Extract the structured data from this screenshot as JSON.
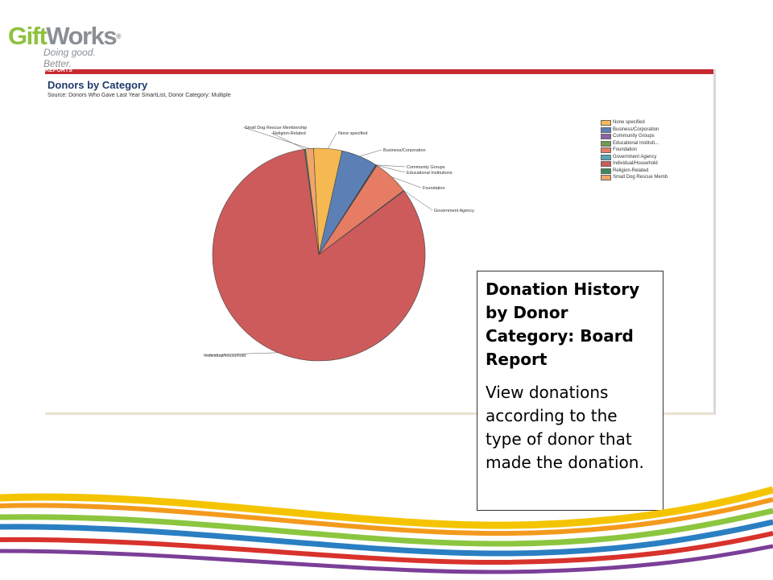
{
  "logo": {
    "brand_a": "Gift",
    "brand_b": "Works",
    "reg": "®",
    "tagline": "Doing good. Better."
  },
  "report": {
    "header_bar": "REPORTS",
    "title": "Donors by Category",
    "source": "Source: Donors Who Gave Last Year SmartList, Donor Category: Multiple"
  },
  "legend": [
    {
      "label": "None specified",
      "color": "#f6b951"
    },
    {
      "label": "Business/Corporation",
      "color": "#5c7fb5"
    },
    {
      "label": "Community Groups",
      "color": "#8a63a8"
    },
    {
      "label": "Educational Instituti...",
      "color": "#6f9a52"
    },
    {
      "label": "Foundation",
      "color": "#e67c64"
    },
    {
      "label": "Government Agency",
      "color": "#56a5b8"
    },
    {
      "label": "Individual/Household",
      "color": "#cd5b5b"
    },
    {
      "label": "Religion-Related",
      "color": "#3c8a58"
    },
    {
      "label": "Small Dog Rescue Memb",
      "color": "#f0a56b"
    }
  ],
  "chart_data": {
    "type": "pie",
    "title": "Donors by Category",
    "legend_position": "right",
    "slices": [
      {
        "label": "None specified",
        "value": 4.3,
        "color": "#f6b951"
      },
      {
        "label": "Business/Corporation",
        "value": 5.5,
        "color": "#5c7fb5"
      },
      {
        "label": "Community Groups",
        "value": 0.1,
        "color": "#8a63a8"
      },
      {
        "label": "Educational Institutions",
        "value": 0.1,
        "color": "#6f9a52"
      },
      {
        "label": "Foundation",
        "value": 5.5,
        "color": "#e67c64"
      },
      {
        "label": "Government Agency",
        "value": 0.1,
        "color": "#56a5b8"
      },
      {
        "label": "Individual/Household",
        "value": 83.0,
        "color": "#cd5b5b"
      },
      {
        "label": "Religion-Related",
        "value": 0.2,
        "color": "#3c8a58"
      },
      {
        "label": "Small Dog Rescue Membership",
        "value": 1.2,
        "color": "#f0a56b"
      }
    ]
  },
  "note": {
    "title": "Donation History by Donor Category: Board Report",
    "body": "View donations according to the type of donor that made the donation."
  }
}
